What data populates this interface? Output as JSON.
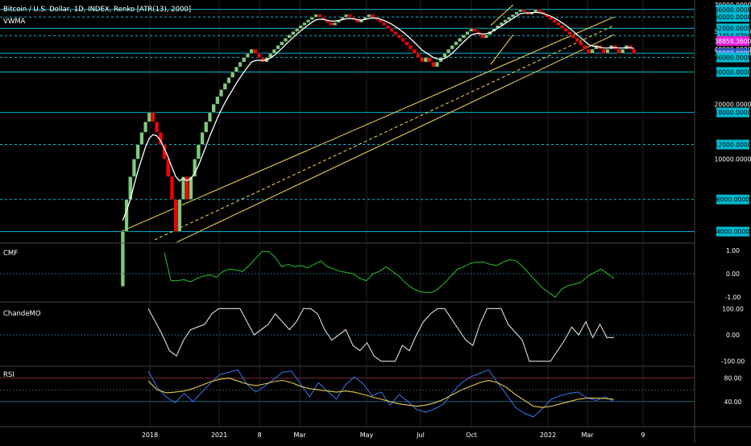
{
  "header": {
    "title": "Bitcoin / U.S. Dollar, 1D, INDEX, Renko [ATR(13), 2000]",
    "indicator": "VWMA"
  },
  "colors": {
    "background": "#000000",
    "up_brick": "#7fc97f",
    "down_brick": "#ff0000",
    "vwma": "#ffffff",
    "channel": "#e6c84c",
    "level_line": "#00bcd4",
    "level_tag": "#00bcd4",
    "price_tag": "#e91edc",
    "ref_tag": "#2f5fd0",
    "cmf_line": "#22b322",
    "chande_line": "#dddddd",
    "rsi_line": "#2f6fe0",
    "rsi_ma": "#e6c84c",
    "axis_text": "#ffffff",
    "grid": "#222222"
  },
  "chart_data": [
    {
      "type": "renko",
      "title": "Bitcoin / U.S. Dollar, 1D, INDEX, Renko [ATR(13), 2000]",
      "brick_size": 2000,
      "price_axis_ticks": [
        70000,
        50000,
        40000,
        30000,
        20000,
        10000
      ],
      "price_axis_labels": [
        "70000.0000",
        "50000.0000",
        "40000.0000",
        "30000.0000",
        "20000.0000",
        "10000.0000"
      ],
      "levels": [
        66000,
        60000,
        52000,
        47454.07,
        38000,
        36000,
        30000,
        18000,
        12000,
        6000,
        4000
      ],
      "level_labels": [
        "66000.0000",
        "60000.0000",
        "52000.0000",
        "47454.0700",
        "38000.0000",
        "36000.0000",
        "30000.0000",
        "18000.0000",
        "12000.0000",
        "6000.0000",
        "4000.0000"
      ],
      "current_price_label": "38858.3600",
      "x_axis_labels": [
        "2018",
        "2021",
        "8",
        "Mar",
        "May",
        "Jul",
        "Oct",
        "2022",
        "Mar",
        "9"
      ],
      "bricks_close": [
        4000,
        6000,
        8000,
        10000,
        12000,
        14000,
        16000,
        18000,
        16000,
        14000,
        12000,
        10000,
        8000,
        6000,
        4000,
        6000,
        8000,
        6000,
        8000,
        10000,
        12000,
        14000,
        16000,
        18000,
        20000,
        22000,
        24000,
        26000,
        28000,
        30000,
        32000,
        34000,
        36000,
        38000,
        40000,
        38000,
        36000,
        34000,
        36000,
        38000,
        40000,
        42000,
        44000,
        46000,
        48000,
        50000,
        52000,
        54000,
        56000,
        58000,
        60000,
        62000,
        60000,
        58000,
        56000,
        54000,
        56000,
        58000,
        60000,
        62000,
        60000,
        58000,
        56000,
        58000,
        60000,
        62000,
        60000,
        58000,
        56000,
        54000,
        52000,
        50000,
        48000,
        46000,
        44000,
        42000,
        40000,
        38000,
        36000,
        34000,
        36000,
        34000,
        32000,
        34000,
        36000,
        38000,
        40000,
        42000,
        44000,
        46000,
        48000,
        50000,
        52000,
        50000,
        48000,
        46000,
        48000,
        50000,
        52000,
        54000,
        56000,
        58000,
        60000,
        62000,
        64000,
        66000,
        64000,
        62000,
        64000,
        66000,
        64000,
        62000,
        60000,
        58000,
        56000,
        54000,
        52000,
        50000,
        48000,
        46000,
        44000,
        42000,
        40000,
        38000,
        40000,
        42000,
        40000,
        38000,
        40000,
        42000,
        40000,
        38000,
        40000,
        42000,
        40000,
        38000
      ],
      "vwma": [
        4600,
        5200,
        6000,
        7200,
        8600,
        10000,
        11600,
        13000,
        13600,
        13400,
        12600,
        11400,
        10200,
        9000,
        8000,
        7600,
        7800,
        7600,
        7800,
        8400,
        9200,
        10400,
        11800,
        13400,
        15000,
        16800,
        18600,
        20400,
        22200,
        24000,
        26000,
        28000,
        30000,
        32000,
        34000,
        34600,
        34800,
        34600,
        35000,
        35800,
        37000,
        38600,
        40400,
        42400,
        44400,
        46400,
        48400,
        50400,
        52400,
        54400,
        56200,
        57800,
        58400,
        58200,
        57600,
        57000,
        57000,
        57400,
        58000,
        58800,
        59000,
        58600,
        58000,
        57800,
        58200,
        59000,
        59400,
        59200,
        58400,
        57400,
        56200,
        54800,
        53200,
        51400,
        49600,
        47600,
        45600,
        43600,
        41600,
        39600,
        38400,
        37200,
        36000,
        35400,
        35200,
        35600,
        36600,
        38000,
        39800,
        41800,
        43800,
        45800,
        47800,
        48600,
        48800,
        48400,
        48600,
        49400,
        50600,
        52000,
        53600,
        55400,
        57200,
        59000,
        60800,
        62600,
        63200,
        63200,
        63400,
        63600,
        63400,
        62800,
        61800,
        60600,
        59200,
        57600,
        55800,
        54000,
        52000,
        50000,
        48000,
        46000,
        44200,
        42400,
        41600,
        41400,
        41000,
        40600,
        40600,
        40800,
        40800,
        40600,
        40600,
        40800,
        40800,
        40400
      ],
      "channels": [
        {
          "name": "upper-parallel",
          "from": [
            2018.0,
            4000
          ],
          "to": [
            2022.4,
            60000
          ]
        },
        {
          "name": "lower-parallel",
          "from": [
            2018.5,
            3500
          ],
          "to": [
            2022.4,
            48000
          ]
        },
        {
          "name": "midline-dashed",
          "from": [
            2018.3,
            3600
          ],
          "to": [
            2022.4,
            54000
          ]
        },
        {
          "name": "flag-upper",
          "from": [
            2021.3,
            54000
          ],
          "to": [
            2021.5,
            70000
          ]
        },
        {
          "name": "flag-lower",
          "from": [
            2021.3,
            33000
          ],
          "to": [
            2021.5,
            48000
          ]
        }
      ]
    },
    {
      "type": "line",
      "title": "CMF",
      "yticks": [
        "1.00",
        "0.00",
        "-1.00"
      ],
      "ylim": [
        -1.1,
        1.1
      ],
      "values": [
        0.9,
        -0.3,
        -0.3,
        -0.25,
        -0.35,
        -0.2,
        -0.1,
        -0.05,
        -0.15,
        0.1,
        0.2,
        0.15,
        0.1,
        0.35,
        0.65,
        0.95,
        0.95,
        0.7,
        0.3,
        0.4,
        0.3,
        0.35,
        0.25,
        0.4,
        0.55,
        0.3,
        0.2,
        0.1,
        0.05,
        0.0,
        -0.2,
        -0.3,
        0.0,
        0.1,
        0.3,
        0.1,
        -0.1,
        -0.4,
        -0.6,
        -0.75,
        -0.8,
        -0.8,
        -0.65,
        -0.4,
        -0.1,
        0.2,
        0.3,
        0.45,
        0.5,
        0.5,
        0.4,
        0.35,
        0.5,
        0.6,
        0.55,
        0.3,
        0.0,
        -0.3,
        -0.6,
        -0.8,
        -1.0,
        -0.65,
        -0.5,
        -0.45,
        -0.35,
        -0.1,
        0.05,
        0.2,
        0.0,
        -0.2
      ]
    },
    {
      "type": "line",
      "title": "ChandeMO",
      "yticks": [
        "100.00",
        "0.00",
        "-100.00"
      ],
      "ylim": [
        -110,
        110
      ],
      "values": [
        100,
        50,
        0,
        -60,
        -80,
        -20,
        20,
        30,
        40,
        80,
        100,
        100,
        100,
        100,
        50,
        0,
        20,
        40,
        80,
        50,
        20,
        50,
        100,
        100,
        80,
        20,
        -20,
        0,
        20,
        -40,
        -60,
        -30,
        -80,
        -100,
        -100,
        -100,
        -40,
        -60,
        0,
        50,
        80,
        100,
        100,
        60,
        20,
        -20,
        -40,
        40,
        100,
        100,
        100,
        40,
        10,
        -20,
        -100,
        -100,
        -100,
        -100,
        -60,
        -20,
        30,
        0,
        50,
        -10,
        40,
        -10,
        -10
      ]
    },
    {
      "type": "line",
      "title": "RSI",
      "yticks": [
        "80.00",
        "40.00"
      ],
      "ylim": [
        0,
        100
      ],
      "series": [
        {
          "values": [
            92,
            64,
            48,
            38,
            54,
            40,
            56,
            72,
            86,
            90,
            94,
            70,
            56,
            66,
            78,
            90,
            92,
            70,
            48,
            72,
            58,
            44,
            68,
            82,
            70,
            50,
            56,
            34,
            52,
            40,
            26,
            22,
            28,
            36,
            56,
            72,
            82,
            88,
            94,
            72,
            52,
            30,
            20,
            14,
            28,
            44,
            50,
            54,
            56,
            46,
            42,
            48,
            40
          ]
        },
        {
          "values": [
            75,
            60,
            55,
            56,
            58,
            62,
            68,
            74,
            78,
            80,
            75,
            70,
            67,
            70,
            74,
            76,
            72,
            66,
            62,
            60,
            58,
            56,
            58,
            56,
            52,
            48,
            44,
            40,
            36,
            34,
            32,
            34,
            38,
            44,
            52,
            60,
            66,
            72,
            76,
            72,
            64,
            52,
            42,
            32,
            30,
            32,
            36,
            40,
            44,
            46,
            46,
            45,
            44
          ]
        }
      ]
    }
  ]
}
